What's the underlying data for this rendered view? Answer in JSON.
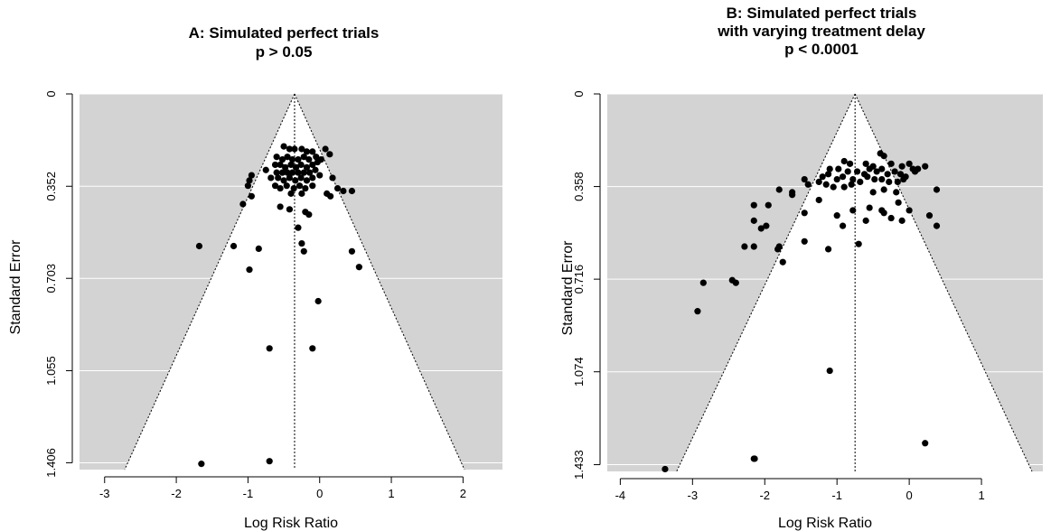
{
  "chart_data": [
    {
      "type": "scatter",
      "title_lines": [
        "A: Simulated perfect trials",
        "p > 0.05"
      ],
      "xlabel": "Log Risk Ratio",
      "ylabel": "Standard Error",
      "xlim": [
        -3.35,
        2.55
      ],
      "ylim": [
        0,
        1.432
      ],
      "y_reversed": true,
      "xticks": [
        -3,
        -2,
        -1,
        0,
        1,
        2
      ],
      "xtick_labels": [
        "-3",
        "-2",
        "-1",
        "0",
        "1",
        "2"
      ],
      "yticks": [
        0,
        0.352,
        0.703,
        1.055,
        1.406
      ],
      "ytick_labels": [
        "0",
        "0.352",
        "0.703",
        "1.055",
        "1.406"
      ],
      "funnel_center": -0.35,
      "funnel_apex_se": 0,
      "funnel_base_x": [
        -2.72,
        2.02
      ],
      "colors": {
        "background": "#d3d3d3",
        "funnel": "#ffffff",
        "grid": "#ffffff",
        "points": "#000000"
      },
      "points": [
        [
          -0.5,
          0.2
        ],
        [
          -0.42,
          0.21
        ],
        [
          -0.35,
          0.21
        ],
        [
          -0.25,
          0.21
        ],
        [
          -0.18,
          0.22
        ],
        [
          -0.1,
          0.22
        ],
        [
          0.08,
          0.21
        ],
        [
          0.14,
          0.23
        ],
        [
          -0.6,
          0.24
        ],
        [
          -0.52,
          0.25
        ],
        [
          -0.45,
          0.24
        ],
        [
          -0.38,
          0.25
        ],
        [
          -0.3,
          0.25
        ],
        [
          -0.22,
          0.24
        ],
        [
          -0.15,
          0.25
        ],
        [
          -0.05,
          0.24
        ],
        [
          0.02,
          0.25
        ],
        [
          -0.62,
          0.27
        ],
        [
          -0.55,
          0.27
        ],
        [
          -0.48,
          0.28
        ],
        [
          -0.4,
          0.27
        ],
        [
          -0.33,
          0.28
        ],
        [
          -0.26,
          0.27
        ],
        [
          -0.18,
          0.28
        ],
        [
          -0.1,
          0.27
        ],
        [
          -0.03,
          0.26
        ],
        [
          -0.75,
          0.29
        ],
        [
          -0.6,
          0.3
        ],
        [
          -0.52,
          0.3
        ],
        [
          -0.45,
          0.3
        ],
        [
          -0.38,
          0.3
        ],
        [
          -0.3,
          0.3
        ],
        [
          -0.22,
          0.3
        ],
        [
          -0.14,
          0.3
        ],
        [
          -0.06,
          0.29
        ],
        [
          -0.68,
          0.32
        ],
        [
          -0.58,
          0.32
        ],
        [
          -0.5,
          0.33
        ],
        [
          -0.42,
          0.32
        ],
        [
          -0.34,
          0.33
        ],
        [
          -0.26,
          0.32
        ],
        [
          -0.18,
          0.33
        ],
        [
          -0.1,
          0.32
        ],
        [
          0.0,
          0.31
        ],
        [
          -0.95,
          0.31
        ],
        [
          -0.98,
          0.33
        ],
        [
          -1.0,
          0.35
        ],
        [
          0.18,
          0.32
        ],
        [
          -0.62,
          0.35
        ],
        [
          -0.55,
          0.36
        ],
        [
          -0.46,
          0.35
        ],
        [
          -0.36,
          0.36
        ],
        [
          -0.28,
          0.35
        ],
        [
          -0.2,
          0.36
        ],
        [
          -0.1,
          0.35
        ],
        [
          0.25,
          0.36
        ],
        [
          -0.4,
          0.38
        ],
        [
          -0.25,
          0.38
        ],
        [
          0.1,
          0.38
        ],
        [
          0.15,
          0.39
        ],
        [
          0.33,
          0.37
        ],
        [
          0.45,
          0.37
        ],
        [
          -0.95,
          0.39
        ],
        [
          -1.07,
          0.42
        ],
        [
          -0.55,
          0.43
        ],
        [
          -0.42,
          0.44
        ],
        [
          -0.2,
          0.45
        ],
        [
          -0.15,
          0.46
        ],
        [
          -0.3,
          0.51
        ],
        [
          -1.68,
          0.58
        ],
        [
          -1.2,
          0.58
        ],
        [
          -0.85,
          0.59
        ],
        [
          -0.25,
          0.57
        ],
        [
          -0.22,
          0.6
        ],
        [
          0.45,
          0.6
        ],
        [
          -0.98,
          0.67
        ],
        [
          0.55,
          0.66
        ],
        [
          -0.02,
          0.79
        ],
        [
          -0.7,
          0.97
        ],
        [
          -0.1,
          0.97
        ],
        [
          -1.65,
          1.41
        ],
        [
          -0.7,
          1.4
        ]
      ]
    },
    {
      "type": "scatter",
      "title_lines": [
        "B: Simulated perfect trials",
        "with varying treatment delay",
        "p < 0.0001"
      ],
      "xlabel": "Log Risk Ratio",
      "ylabel": "Standard Error",
      "xlim": [
        -4.18,
        1.85
      ],
      "ylim": [
        0,
        1.459
      ],
      "y_reversed": true,
      "xticks": [
        -4,
        -3,
        -2,
        -1,
        0,
        1
      ],
      "xtick_labels": [
        "-4",
        "-3",
        "-2",
        "-1",
        "0",
        "1"
      ],
      "yticks": [
        0,
        0.358,
        0.716,
        1.074,
        1.433
      ],
      "ytick_labels": [
        "0",
        "0.358",
        "0.716",
        "1.074",
        "1.433"
      ],
      "funnel_center": -0.75,
      "funnel_apex_se": 0,
      "funnel_base_x": [
        -3.22,
        1.7
      ],
      "colors": {
        "background": "#d3d3d3",
        "funnel": "#ffffff",
        "grid": "#ffffff",
        "points": "#000000"
      },
      "points": [
        [
          -0.4,
          0.23
        ],
        [
          -0.35,
          0.24
        ],
        [
          -0.9,
          0.26
        ],
        [
          -0.82,
          0.27
        ],
        [
          -0.6,
          0.27
        ],
        [
          -0.5,
          0.28
        ],
        [
          -0.25,
          0.27
        ],
        [
          -0.1,
          0.28
        ],
        [
          0.0,
          0.27
        ],
        [
          0.05,
          0.29
        ],
        [
          0.22,
          0.28
        ],
        [
          -1.1,
          0.29
        ],
        [
          -0.98,
          0.29
        ],
        [
          -0.85,
          0.3
        ],
        [
          -0.72,
          0.3
        ],
        [
          -0.62,
          0.31
        ],
        [
          -0.55,
          0.29
        ],
        [
          -0.45,
          0.3
        ],
        [
          -0.38,
          0.29
        ],
        [
          -0.3,
          0.31
        ],
        [
          -0.2,
          0.3
        ],
        [
          -0.12,
          0.31
        ],
        [
          -0.05,
          0.32
        ],
        [
          0.08,
          0.3
        ],
        [
          0.12,
          0.29
        ],
        [
          -1.2,
          0.32
        ],
        [
          -1.12,
          0.31
        ],
        [
          -1.0,
          0.33
        ],
        [
          -0.92,
          0.32
        ],
        [
          -0.78,
          0.33
        ],
        [
          -0.68,
          0.34
        ],
        [
          -0.58,
          0.32
        ],
        [
          -0.48,
          0.33
        ],
        [
          -0.38,
          0.33
        ],
        [
          -0.28,
          0.34
        ],
        [
          -0.16,
          0.34
        ],
        [
          -0.08,
          0.33
        ],
        [
          -1.45,
          0.33
        ],
        [
          -1.4,
          0.35
        ],
        [
          -1.25,
          0.34
        ],
        [
          -1.15,
          0.35
        ],
        [
          -1.05,
          0.36
        ],
        [
          -0.9,
          0.36
        ],
        [
          -0.8,
          0.35
        ],
        [
          -0.35,
          0.37
        ],
        [
          -0.5,
          0.38
        ],
        [
          -0.18,
          0.38
        ],
        [
          -1.8,
          0.37
        ],
        [
          -1.62,
          0.39
        ],
        [
          -1.62,
          0.38
        ],
        [
          -1.25,
          0.41
        ],
        [
          0.38,
          0.37
        ],
        [
          -0.55,
          0.44
        ],
        [
          -0.15,
          0.42
        ],
        [
          -1.45,
          0.46
        ],
        [
          -1.0,
          0.47
        ],
        [
          -0.78,
          0.45
        ],
        [
          -0.35,
          0.46
        ],
        [
          -0.38,
          0.45
        ],
        [
          0.0,
          0.45
        ],
        [
          0.28,
          0.47
        ],
        [
          0.38,
          0.51
        ],
        [
          -2.15,
          0.43
        ],
        [
          -1.95,
          0.43
        ],
        [
          -2.15,
          0.49
        ],
        [
          -2.05,
          0.52
        ],
        [
          -1.98,
          0.51
        ],
        [
          -0.1,
          0.49
        ],
        [
          -0.6,
          0.49
        ],
        [
          -0.25,
          0.48
        ],
        [
          -0.92,
          0.51
        ],
        [
          -1.8,
          0.59
        ],
        [
          -1.82,
          0.6
        ],
        [
          -1.45,
          0.57
        ],
        [
          -1.12,
          0.6
        ],
        [
          -0.7,
          0.58
        ],
        [
          -2.28,
          0.59
        ],
        [
          -2.15,
          0.59
        ],
        [
          -1.75,
          0.65
        ],
        [
          -2.45,
          0.72
        ],
        [
          -2.4,
          0.73
        ],
        [
          -2.85,
          0.73
        ],
        [
          -2.93,
          0.84
        ],
        [
          -1.1,
          1.07
        ],
        [
          -2.15,
          1.41
        ],
        [
          -2.14,
          1.41
        ],
        [
          0.22,
          1.35
        ],
        [
          -3.38,
          1.45
        ]
      ]
    }
  ]
}
